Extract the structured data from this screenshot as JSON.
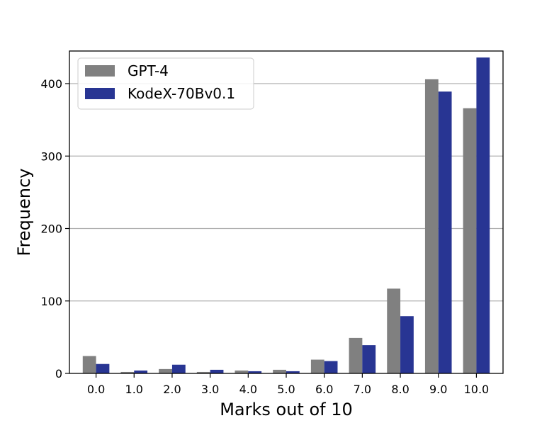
{
  "chart_data": {
    "type": "bar",
    "title": "",
    "xlabel": "Marks out of 10",
    "ylabel": "Frequency",
    "categories": [
      "0.0",
      "1.0",
      "2.0",
      "3.0",
      "4.0",
      "5.0",
      "6.0",
      "7.0",
      "8.0",
      "9.0",
      "10.0"
    ],
    "series": [
      {
        "name": "GPT-4",
        "color": "#808080",
        "values": [
          24,
          2,
          6,
          2,
          4,
          5,
          19,
          49,
          117,
          406,
          366
        ]
      },
      {
        "name": "KodeX-70Bv0.1",
        "color": "#283593",
        "values": [
          13,
          4,
          12,
          5,
          3,
          3,
          17,
          39,
          79,
          389,
          436
        ]
      }
    ],
    "ylim": [
      0,
      445
    ],
    "yticks": [
      0,
      100,
      200,
      300,
      400
    ],
    "ytick_labels": [
      "0",
      "100",
      "200",
      "300",
      "400"
    ],
    "grid": "horizontal",
    "legend_position": "top-left"
  }
}
